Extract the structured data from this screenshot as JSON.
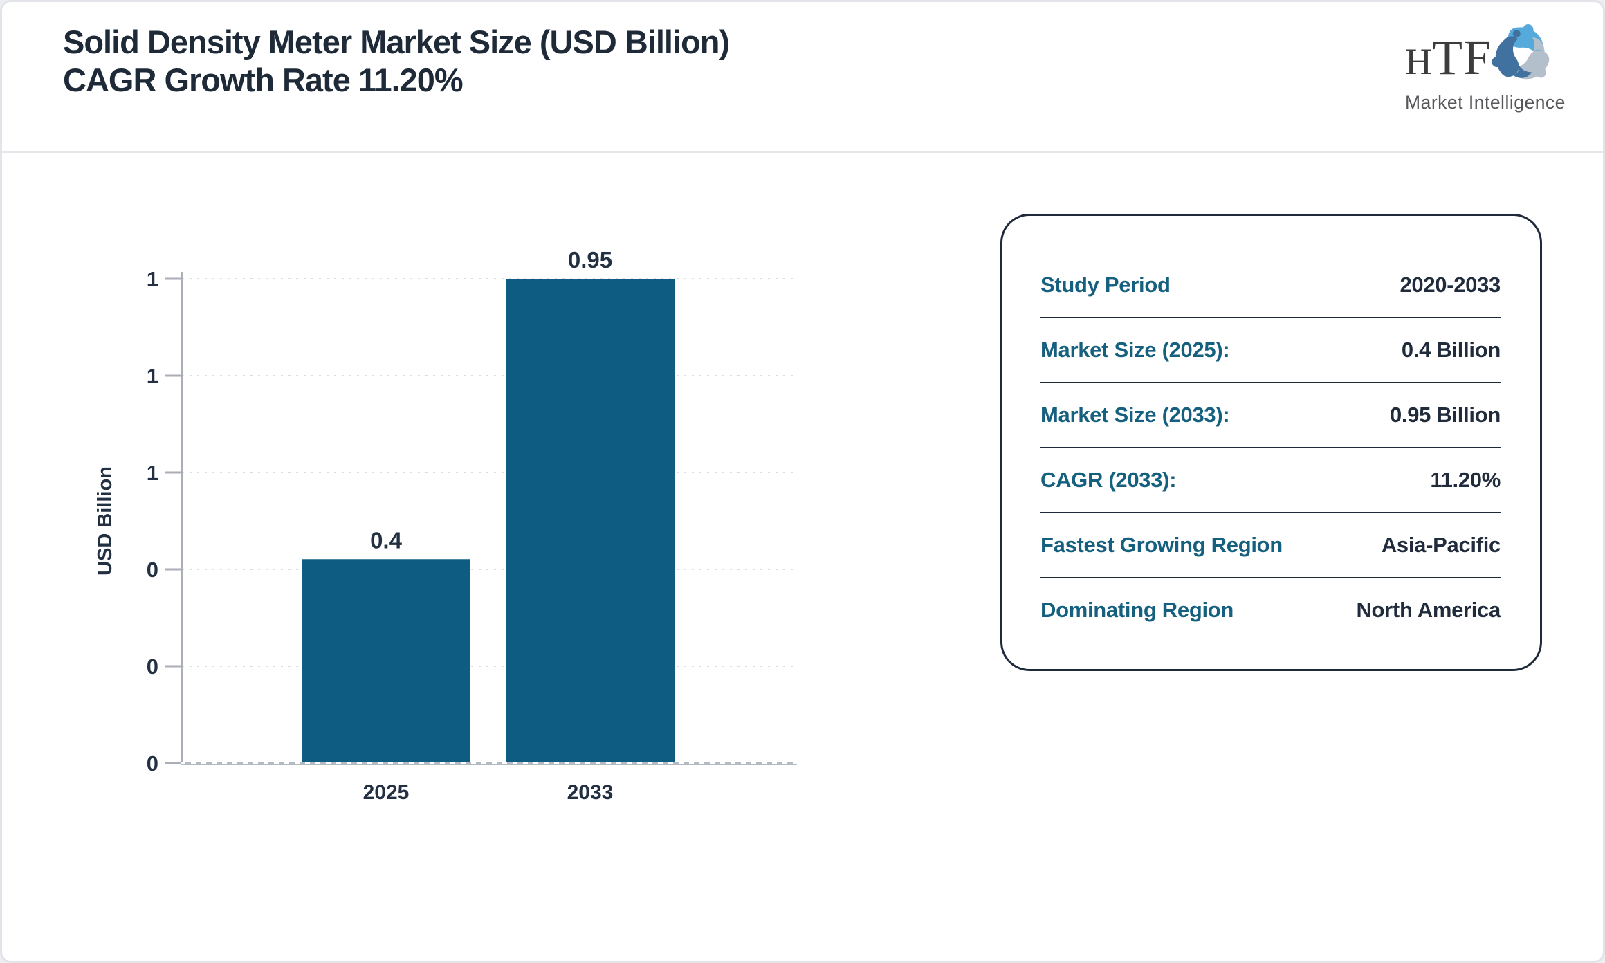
{
  "header": {
    "title_line1": "Solid Density Meter Market Size (USD Billion)",
    "title_line2": "CAGR Growth Rate 11.20%"
  },
  "logo": {
    "brand_h": "H",
    "brand_tf": "TF",
    "subtitle": "Market Intelligence",
    "swirl_colors": [
      "#56aadb",
      "#b4bfcc",
      "#41729f"
    ]
  },
  "chart_data": {
    "type": "bar",
    "title": "",
    "categories": [
      "2025",
      "2033"
    ],
    "values": [
      0.4,
      0.95
    ],
    "bar_value_labels": [
      "0.4",
      "0.95"
    ],
    "xlabel": "",
    "ylabel": "USD Billion",
    "ylim": [
      0,
      0.95
    ],
    "yticks": [
      0,
      0.19,
      0.38,
      0.57,
      0.76,
      0.95
    ],
    "ytick_labels": [
      "0",
      "0",
      "0",
      "1",
      "1",
      "1"
    ],
    "grid": true,
    "legend_position": "none",
    "bar_color": "#0e5c81",
    "text_color": "#223042",
    "gridline_color": "#dcdddf",
    "axis_color": "#a9aeb7",
    "baseline_color": "#b5bbc3"
  },
  "panel": {
    "rows": [
      {
        "label": "Study Period",
        "value": "2020-2033"
      },
      {
        "label": "Market Size (2025):",
        "value": "0.4 Billion"
      },
      {
        "label": "Market Size (2033):",
        "value": "0.95 Billion"
      },
      {
        "label": "CAGR (2033):",
        "value": "11.20%"
      },
      {
        "label": "Fastest Growing Region",
        "value": "Asia-Pacific"
      },
      {
        "label": "Dominating Region",
        "value": "North America"
      }
    ]
  }
}
